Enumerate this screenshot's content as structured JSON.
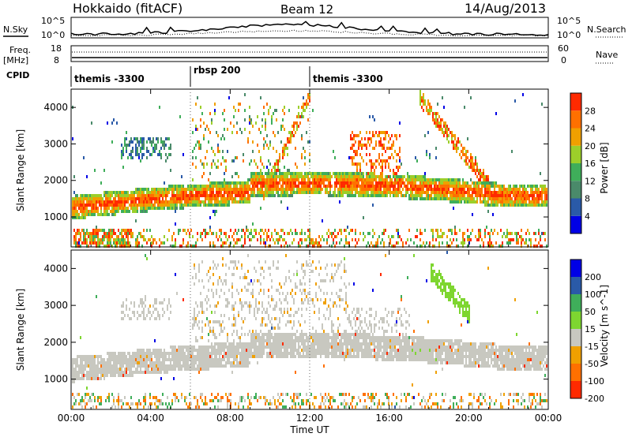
{
  "header": {
    "station": "Hokkaido (fitACF)",
    "beam": "Beam 12",
    "date": "14/Aug/2013"
  },
  "side_labels": {
    "nsky": "N.Sky",
    "freq": "Freq.",
    "freq_unit": "[MHz]",
    "cpid": "CPID",
    "nsearch": "N.Search",
    "nave": "Nave"
  },
  "noise_axis": {
    "top": "10^5",
    "bottom": "10^0"
  },
  "freq_axis": {
    "left_top": "18",
    "left_bottom": "8",
    "right_top": "60",
    "right_bottom": "0"
  },
  "cpid_segments": [
    {
      "label": "themis -3300",
      "start_hour": 0
    },
    {
      "label": "rbsp 200",
      "start_hour": 6
    },
    {
      "label": "themis -3300",
      "start_hour": 12
    }
  ],
  "chart_data": [
    {
      "type": "heatmap",
      "title": "",
      "quantity": "Power",
      "xlabel": "",
      "ylabel": "Slant Range [km]",
      "xlim_hours": [
        0,
        24
      ],
      "ylim_km": [
        180,
        4500
      ],
      "y_ticks": [
        "1000",
        "2000",
        "3000",
        "4000"
      ],
      "colorbar_label": "Power [dB]",
      "colorbar_ticks": [
        "4",
        "8",
        "12",
        "16",
        "20",
        "24",
        "28"
      ],
      "colorbar_colors": [
        "#0000e6",
        "#2a5aa8",
        "#4a8a6a",
        "#3fae5a",
        "#9ccf2a",
        "#f0a000",
        "#ff7000",
        "#ff2a00"
      ],
      "features": [
        {
          "name": "main band",
          "ranges_km": "1200-2000",
          "hours": [
            0,
            24
          ],
          "power_db": [
            16,
            28
          ]
        },
        {
          "name": "near-range echoes",
          "ranges_km": "300-700",
          "hours": [
            0,
            24
          ],
          "power_db": [
            12,
            24
          ]
        },
        {
          "name": "arc rising",
          "ranges_km": "1500-4400",
          "hours": [
            9.5,
            12
          ],
          "power_db": [
            16,
            28
          ]
        },
        {
          "name": "arc descending",
          "ranges_km": "4300-1800",
          "hours": [
            17.5,
            21
          ],
          "power_db": [
            16,
            28
          ]
        },
        {
          "name": "evening filaments",
          "ranges_km": "1800-3400",
          "hours": [
            14,
            16.5
          ],
          "power_db": [
            20,
            28
          ]
        }
      ]
    },
    {
      "type": "heatmap",
      "title": "",
      "quantity": "Velocity",
      "xlabel": "Time UT",
      "ylabel": "Slant Range [km]",
      "xlim_hours": [
        0,
        24
      ],
      "x_ticks": [
        "00:00",
        "04:00",
        "08:00",
        "12:00",
        "16:00",
        "20:00",
        "00:00"
      ],
      "ylim_km": [
        180,
        4500
      ],
      "y_ticks": [
        "1000",
        "2000",
        "3000",
        "4000"
      ],
      "colorbar_label": "Velocity [m s^-1]",
      "colorbar_ticks": [
        "200",
        "100",
        "50",
        "15",
        "-15",
        "-50",
        "-100",
        "-200"
      ],
      "colorbar_colors": [
        "#0000e6",
        "#2a5aa8",
        "#3fae5a",
        "#7ed630",
        "#c8c8c0",
        "#f0a000",
        "#ff7000",
        "#ff2a00"
      ],
      "features": [
        {
          "name": "ground scatter band",
          "ranges_km": "1100-1900",
          "hours": [
            0,
            24
          ],
          "velocity_ms": [
            -15,
            15
          ]
        },
        {
          "name": "positive velocity streak",
          "ranges_km": "4000-2800",
          "hours": [
            18,
            20
          ],
          "velocity_ms": [
            15,
            50
          ]
        }
      ]
    }
  ]
}
